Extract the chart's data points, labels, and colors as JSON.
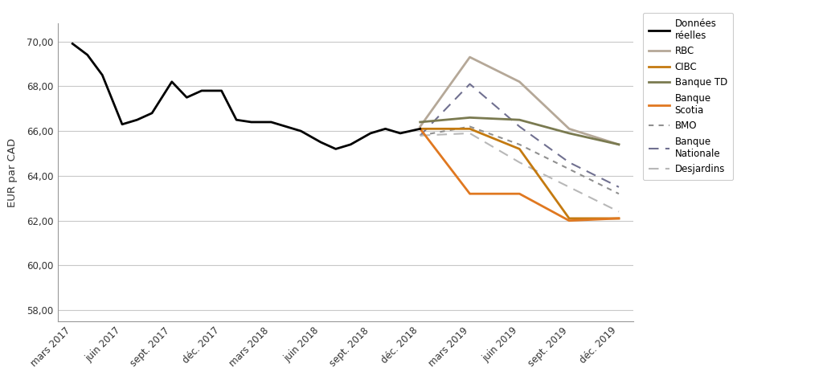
{
  "x_labels": [
    "mars 2017",
    "juin 2017",
    "sept. 2017",
    "déc. 2017",
    "mars 2018",
    "juin 2018",
    "sept. 2018",
    "déc. 2018",
    "mars 2019",
    "juin 2019",
    "sept. 2019",
    "déc. 2019"
  ],
  "donnees_reelles": {
    "x": [
      0,
      0.3,
      0.6,
      1.0,
      1.3,
      1.6,
      2.0,
      2.3,
      2.6,
      3.0,
      3.3,
      3.6,
      4.0,
      4.3,
      4.6,
      5.0,
      5.3,
      5.6,
      6.0,
      6.3,
      6.6,
      7.0
    ],
    "y": [
      69.9,
      69.4,
      68.5,
      66.3,
      66.5,
      66.8,
      68.2,
      67.5,
      67.8,
      67.8,
      66.5,
      66.4,
      66.4,
      66.2,
      66.0,
      65.5,
      65.2,
      65.4,
      65.9,
      66.1,
      65.9,
      66.1
    ],
    "color": "#000000",
    "linewidth": 2.0,
    "label": "Données\nréelles"
  },
  "rbc": {
    "x": [
      7,
      8,
      9,
      10,
      11
    ],
    "y": [
      66.2,
      69.3,
      68.2,
      66.1,
      65.4
    ],
    "color": "#b5a898",
    "linewidth": 2.0,
    "label": "RBC"
  },
  "cibc": {
    "x": [
      7,
      8,
      9,
      10,
      11
    ],
    "y": [
      66.1,
      66.1,
      65.2,
      62.1,
      62.1
    ],
    "color": "#c47a10",
    "linewidth": 2.0,
    "label": "CIBC"
  },
  "banque_td": {
    "x": [
      7,
      8,
      9,
      10,
      11
    ],
    "y": [
      66.4,
      66.6,
      66.5,
      65.9,
      65.4
    ],
    "color": "#7a7a50",
    "linewidth": 2.0,
    "label": "Banque TD"
  },
  "banque_scotia": {
    "x": [
      7,
      8,
      9,
      10,
      11
    ],
    "y": [
      66.1,
      63.2,
      63.2,
      62.0,
      62.1
    ],
    "color": "#e07820",
    "linewidth": 2.0,
    "label": "Banque\nScotia"
  },
  "bmo": {
    "x": [
      7,
      8,
      9,
      10,
      11
    ],
    "y": [
      65.8,
      66.2,
      65.4,
      64.3,
      63.2
    ],
    "color": "#909090",
    "linewidth": 1.5,
    "label": "BMO",
    "dash": [
      3,
      3
    ]
  },
  "banque_nationale": {
    "x": [
      7,
      8,
      9,
      10,
      11
    ],
    "y": [
      65.8,
      68.1,
      66.2,
      64.6,
      63.5
    ],
    "color": "#707090",
    "linewidth": 1.5,
    "label": "Banque\nNationale",
    "dash": [
      6,
      4
    ]
  },
  "desjardins": {
    "x": [
      7,
      8,
      9,
      10,
      11
    ],
    "y": [
      65.8,
      65.9,
      64.6,
      63.5,
      62.4
    ],
    "color": "#b8b8b8",
    "linewidth": 1.5,
    "label": "Desjardins",
    "dash": [
      6,
      4
    ]
  },
  "ylabel": "EUR par CAD",
  "ylim": [
    57.5,
    70.8
  ],
  "yticks": [
    58.0,
    60.0,
    62.0,
    64.0,
    66.0,
    68.0,
    70.0
  ],
  "background_color": "#ffffff",
  "grid_color": "#c8c8c8",
  "border_color": "#999999"
}
